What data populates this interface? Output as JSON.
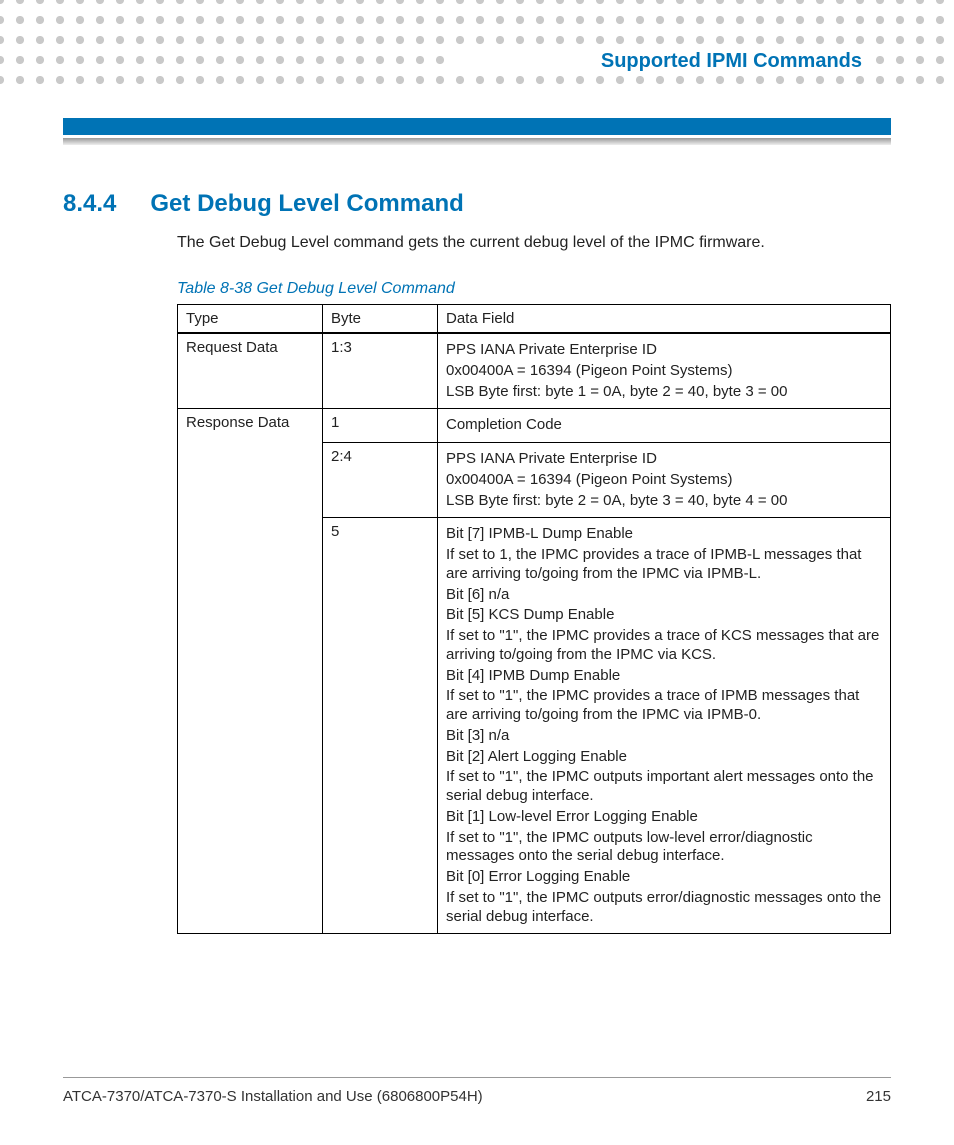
{
  "colors": {
    "accent": "#0073b5",
    "dot": "#c9c9c9",
    "text": "#222222",
    "border": "#000000"
  },
  "header": {
    "chapter_title": "Supported IPMI Commands"
  },
  "section": {
    "number": "8.4.4",
    "title": "Get Debug Level Command",
    "intro": "The Get Debug Level command gets the current debug level of the IPMC firmware."
  },
  "table": {
    "caption": "Table 8-38 Get Debug Level Command",
    "columns": [
      "Type",
      "Byte",
      "Data Field"
    ],
    "rows": [
      {
        "type": "Request Data",
        "byte": "1:3",
        "data": [
          "PPS IANA Private Enterprise ID",
          "0x00400A = 16394 (Pigeon Point Systems)",
          "LSB Byte first: byte 1 = 0A, byte 2 = 40, byte 3 = 00"
        ]
      },
      {
        "type": "Response Data",
        "byte": "1",
        "data": [
          "Completion Code"
        ]
      },
      {
        "type": "",
        "byte": "2:4",
        "data": [
          "PPS IANA Private Enterprise ID",
          "0x00400A = 16394 (Pigeon Point Systems)",
          "LSB Byte first: byte 2 = 0A, byte 3 = 40, byte 4 = 00"
        ]
      },
      {
        "type": "",
        "byte": "5",
        "data": [
          "Bit [7] IPMB-L Dump Enable",
          "If set to 1, the IPMC provides a trace of IPMB-L messages that are arriving to/going from the IPMC via IPMB-L.",
          "Bit [6] n/a",
          "Bit [5] KCS Dump Enable",
          "If set to  \"1\", the IPMC provides a trace of KCS messages that are arriving to/going from the IPMC via KCS.",
          "Bit [4] IPMB Dump Enable",
          "If set to \"1\", the IPMC provides a trace of IPMB messages that are arriving to/going from the IPMC via IPMB-0.",
          "Bit [3] n/a",
          "Bit [2] Alert Logging Enable",
          "If set to  \"1\", the IPMC outputs important alert messages onto the serial debug interface.",
          "Bit [1] Low-level Error Logging Enable",
          "If set to \"1\", the IPMC outputs low-level error/diagnostic messages onto the serial debug interface.",
          "Bit [0] Error Logging Enable",
          "If set to \"1\", the IPMC outputs error/diagnostic messages onto the serial debug interface."
        ]
      }
    ],
    "type_rowspan": [
      1,
      3,
      0,
      0
    ]
  },
  "footer": {
    "doc_title": "ATCA-7370/ATCA-7370-S Installation and Use (6806800P54H)",
    "page_number": "215"
  }
}
